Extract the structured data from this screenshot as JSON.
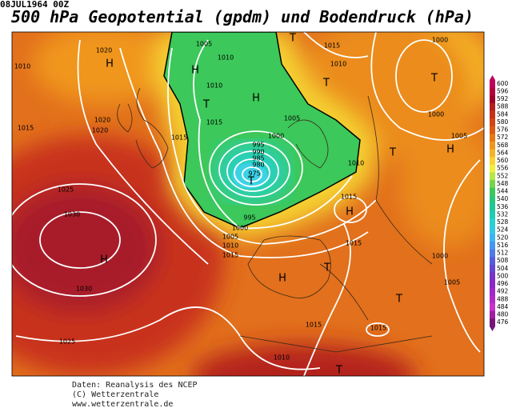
{
  "header": {
    "date": "08JUL1964 00Z",
    "title": "500 hPa Geopotential (gpdm) und Bodendruck (hPa)"
  },
  "map": {
    "isobar_labels": [
      1010,
      1020,
      1005,
      1010,
      1015,
      1010,
      1000,
      1010,
      1015,
      1015,
      1020,
      1020,
      1015,
      1000,
      1005,
      995,
      990,
      985,
      980,
      975,
      1000,
      1005,
      1010,
      1025,
      1030,
      1015,
      995,
      1000,
      1005,
      1010,
      1015,
      1015,
      1000,
      1030,
      1005,
      1015,
      1015,
      1025,
      1010
    ],
    "pressure_centers": [
      "H",
      "T",
      "H",
      "T",
      "T",
      "T",
      "H",
      "T",
      "H",
      "T",
      "H",
      "H",
      "T",
      "H",
      "T",
      "T"
    ]
  },
  "colorbar": {
    "ticks": [
      600,
      596,
      592,
      588,
      584,
      580,
      576,
      572,
      568,
      564,
      560,
      556,
      552,
      548,
      544,
      540,
      536,
      532,
      528,
      524,
      520,
      516,
      512,
      508,
      504,
      500,
      496,
      492,
      488,
      484,
      480,
      476
    ],
    "colors": [
      "#c0005a",
      "#b4003c",
      "#a00028",
      "#b41e1e",
      "#c83214",
      "#d24614",
      "#dc5a14",
      "#e67814",
      "#f0961e",
      "#f5b428",
      "#fad232",
      "#f0f03c",
      "#b4e646",
      "#78d250",
      "#3cc85a",
      "#28c878",
      "#1ec896",
      "#1ecdb4",
      "#28d2d2",
      "#32c8e6",
      "#3cb4f0",
      "#4696f0",
      "#5078e6",
      "#5a5adc",
      "#6446d2",
      "#7832c8",
      "#8c28c8",
      "#a028c8",
      "#b428c8",
      "#c832c8",
      "#a01ea0",
      "#781478"
    ]
  },
  "footer": {
    "lines": [
      "Daten: Reanalysis des NCEP",
      "(C) Wetterzentrale",
      "www.wetterzentrale.de"
    ]
  }
}
